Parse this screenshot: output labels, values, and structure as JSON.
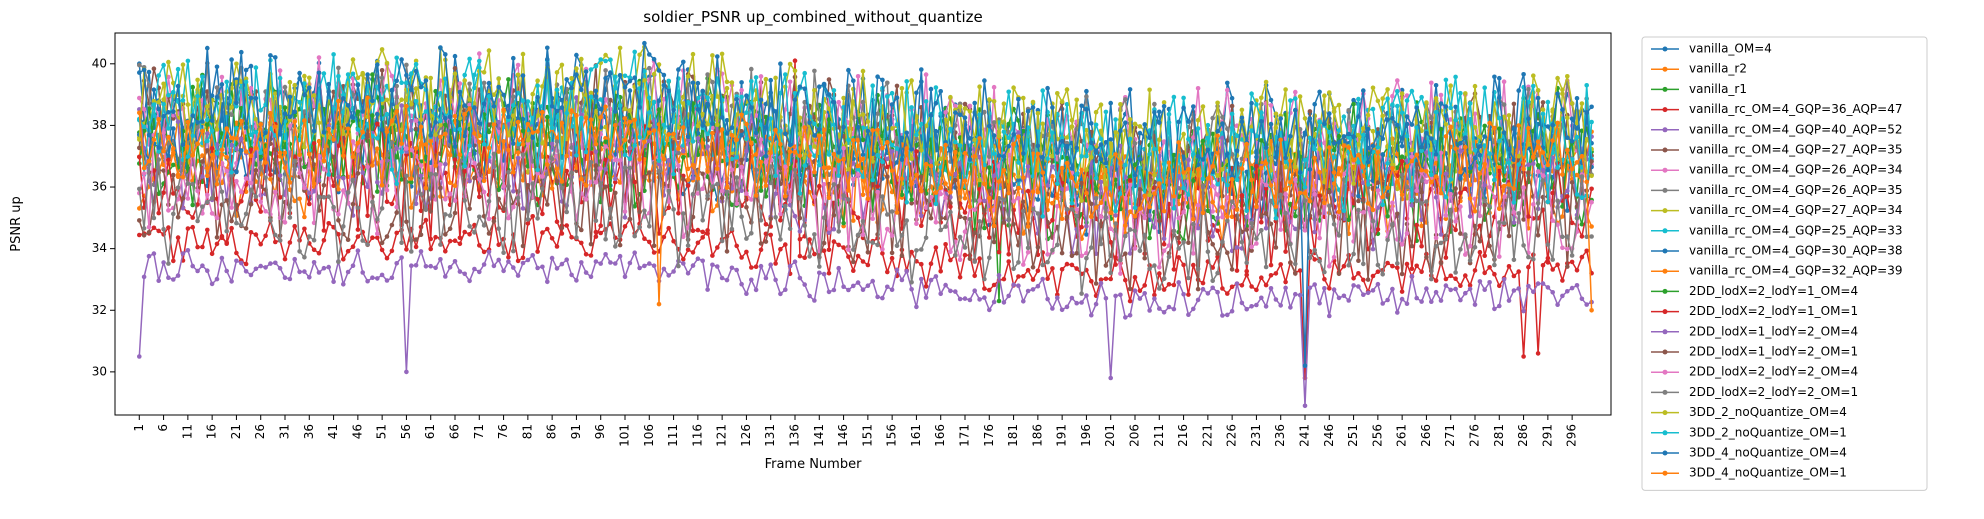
{
  "chart_data": {
    "type": "line",
    "title": "soldier_PSNR up_combined_without_quantize",
    "xlabel": "Frame Number",
    "ylabel": "PSNR up",
    "xlim": [
      -4,
      304
    ],
    "ylim": [
      28.6,
      41.0
    ],
    "x_ticks": [
      1,
      6,
      11,
      16,
      21,
      26,
      31,
      36,
      41,
      46,
      51,
      56,
      61,
      66,
      71,
      76,
      81,
      86,
      91,
      96,
      101,
      106,
      111,
      116,
      121,
      126,
      131,
      136,
      141,
      146,
      151,
      156,
      161,
      166,
      171,
      176,
      181,
      186,
      191,
      196,
      201,
      206,
      211,
      216,
      221,
      226,
      231,
      236,
      241,
      246,
      251,
      256,
      261,
      266,
      271,
      276,
      281,
      286,
      291,
      296
    ],
    "y_ticks": [
      30,
      32,
      34,
      36,
      38,
      40
    ],
    "grid": false,
    "legend_position": "outside-right",
    "frame_range": [
      1,
      300
    ],
    "series": [
      {
        "name": "vanilla_OM=4",
        "color": "#1f77b4",
        "level": [
          38.4,
          38.6,
          37.2,
          37.6
        ],
        "amp": 1.6,
        "dips": []
      },
      {
        "name": "vanilla_r2",
        "color": "#ff7f0e",
        "level": [
          37.3,
          37.4,
          36.2,
          37.0
        ],
        "amp": 0.9,
        "dips": []
      },
      {
        "name": "vanilla_r1",
        "color": "#2ca02c",
        "level": [
          37.8,
          38.0,
          36.5,
          37.4
        ],
        "amp": 1.4,
        "dips": [
          [
            178,
            32.3
          ]
        ]
      },
      {
        "name": "vanilla_rc_OM=4_GQP=36_AQP=47",
        "color": "#d62728",
        "level": [
          34.3,
          34.3,
          33.0,
          33.6
        ],
        "amp": 0.6,
        "dips": [
          [
            136,
            40.1
          ],
          [
            241,
            29.8
          ],
          [
            286,
            30.5
          ],
          [
            289,
            30.6
          ]
        ]
      },
      {
        "name": "vanilla_rc_OM=4_GQP=40_AQP=52",
        "color": "#9467bd",
        "level": [
          33.3,
          33.4,
          32.3,
          32.6
        ],
        "amp": 0.5,
        "dips": [
          [
            1,
            30.5
          ],
          [
            56,
            30.0
          ],
          [
            201,
            29.8
          ],
          [
            241,
            28.9
          ]
        ]
      },
      {
        "name": "vanilla_rc_OM=4_GQP=27_AQP=35",
        "color": "#8c564b",
        "level": [
          38.0,
          38.2,
          36.8,
          37.5
        ],
        "amp": 1.5,
        "dips": []
      },
      {
        "name": "vanilla_rc_OM=4_GQP=26_AQP=34",
        "color": "#e377c2",
        "level": [
          38.2,
          38.4,
          37.0,
          37.6
        ],
        "amp": 1.6,
        "dips": []
      },
      {
        "name": "vanilla_rc_OM=4_GQP=26_AQP=35",
        "color": "#7f7f7f",
        "level": [
          38.1,
          38.3,
          36.9,
          37.5
        ],
        "amp": 1.6,
        "dips": []
      },
      {
        "name": "vanilla_rc_OM=4_GQP=27_AQP=34",
        "color": "#bcbd22",
        "level": [
          38.3,
          38.5,
          37.0,
          37.7
        ],
        "amp": 1.6,
        "dips": []
      },
      {
        "name": "vanilla_rc_OM=4_GQP=25_AQP=33",
        "color": "#17becf",
        "level": [
          38.5,
          38.7,
          37.2,
          37.8
        ],
        "amp": 1.6,
        "dips": []
      },
      {
        "name": "vanilla_rc_OM=4_GQP=30_AQP=38",
        "color": "#1f77b4",
        "level": [
          37.4,
          37.6,
          36.2,
          36.9
        ],
        "amp": 1.4,
        "dips": []
      },
      {
        "name": "vanilla_rc_OM=4_GQP=32_AQP=39",
        "color": "#ff7f0e",
        "level": [
          36.7,
          36.9,
          35.6,
          36.2
        ],
        "amp": 1.3,
        "dips": []
      },
      {
        "name": "2DD_lodX=2_lodY=1_OM=4",
        "color": "#2ca02c",
        "level": [
          37.0,
          37.2,
          35.8,
          36.5
        ],
        "amp": 1.5,
        "dips": []
      },
      {
        "name": "2DD_lodX=2_lodY=1_OM=1",
        "color": "#d62728",
        "level": [
          36.0,
          36.2,
          34.8,
          35.5
        ],
        "amp": 1.5,
        "dips": []
      },
      {
        "name": "2DD_lodX=1_lodY=2_OM=4",
        "color": "#9467bd",
        "level": [
          36.8,
          37.0,
          35.5,
          36.2
        ],
        "amp": 1.5,
        "dips": []
      },
      {
        "name": "2DD_lodX=1_lodY=2_OM=1",
        "color": "#8c564b",
        "level": [
          35.8,
          36.0,
          34.6,
          35.2
        ],
        "amp": 1.5,
        "dips": []
      },
      {
        "name": "2DD_lodX=2_lodY=2_OM=4",
        "color": "#e377c2",
        "level": [
          36.2,
          36.4,
          35.0,
          35.7
        ],
        "amp": 1.5,
        "dips": []
      },
      {
        "name": "2DD_lodX=2_lodY=2_OM=1",
        "color": "#7f7f7f",
        "level": [
          35.4,
          35.6,
          34.2,
          34.9
        ],
        "amp": 1.5,
        "dips": []
      },
      {
        "name": "3DD_2_noQuantize_OM=4",
        "color": "#bcbd22",
        "level": [
          38.6,
          38.8,
          37.3,
          38.0
        ],
        "amp": 1.4,
        "dips": []
      },
      {
        "name": "3DD_2_noQuantize_OM=1",
        "color": "#17becf",
        "level": [
          38.0,
          38.2,
          36.7,
          37.4
        ],
        "amp": 1.5,
        "dips": []
      },
      {
        "name": "3DD_4_noQuantize_OM=4",
        "color": "#1f77b4",
        "level": [
          38.8,
          39.0,
          37.5,
          38.2
        ],
        "amp": 1.3,
        "dips": [
          [
            241,
            30.2
          ]
        ]
      },
      {
        "name": "3DD_4_noQuantize_OM=1",
        "color": "#ff7f0e",
        "level": [
          37.2,
          37.4,
          36.0,
          36.8
        ],
        "amp": 1.2,
        "dips": [
          [
            108,
            32.2
          ],
          [
            300,
            32.0
          ]
        ]
      }
    ]
  }
}
